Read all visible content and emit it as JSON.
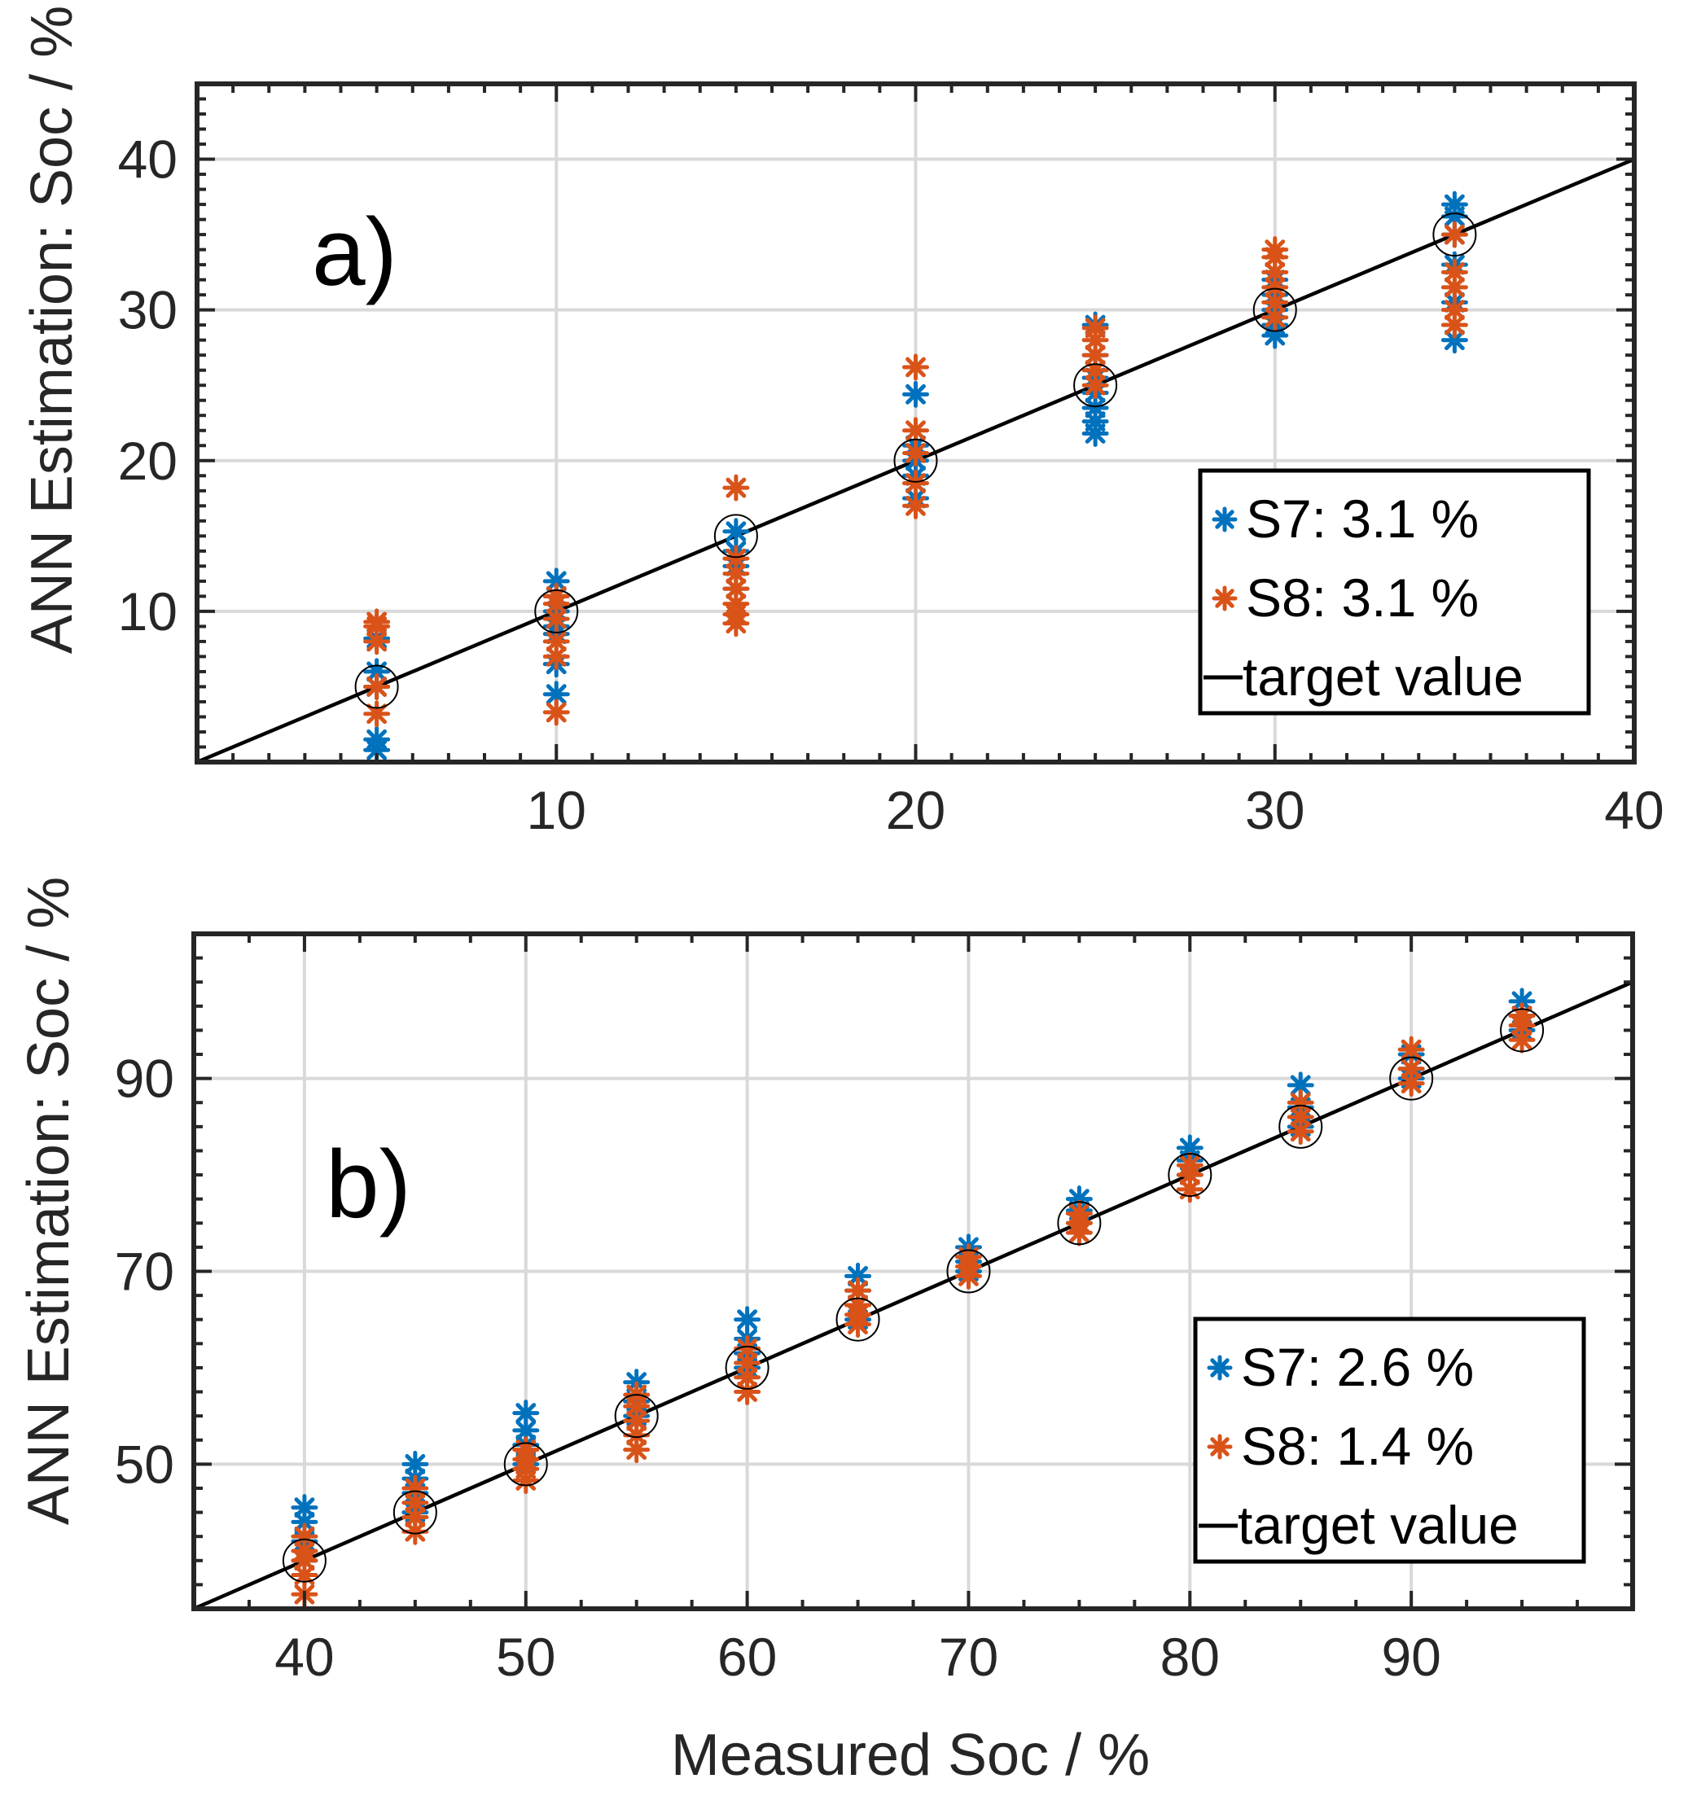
{
  "colors": {
    "s7": "#0072BD",
    "s8": "#D95319",
    "target": "#000000",
    "grid": "#d9d9d9",
    "axes": "#262626"
  },
  "chart_data": [
    {
      "type": "scatter",
      "panel_label": "a)",
      "ylabel": "ANN Estimation: Soc / %",
      "xlabel": "",
      "xlim": [
        0,
        40
      ],
      "ylim": [
        0,
        45
      ],
      "xticks": [
        10,
        20,
        30,
        40
      ],
      "yticks": [
        10,
        20,
        30,
        40
      ],
      "grid": true,
      "legend_position": "bottom-right",
      "series": [
        {
          "name": "S7",
          "legend": "S7: 3.1 %",
          "marker": "asterisk",
          "points": [
            [
              5,
              0.8
            ],
            [
              5,
              1.5
            ],
            [
              5,
              5
            ],
            [
              5,
              6
            ],
            [
              5,
              8.2
            ],
            [
              10,
              4.5
            ],
            [
              10,
              6.5
            ],
            [
              10,
              8.5
            ],
            [
              10,
              9
            ],
            [
              10,
              10
            ],
            [
              10,
              11
            ],
            [
              10,
              12
            ],
            [
              15,
              11.5
            ],
            [
              15,
              13
            ],
            [
              15,
              14
            ],
            [
              15,
              15.3
            ],
            [
              20,
              17.5
            ],
            [
              20,
              19
            ],
            [
              20,
              20
            ],
            [
              20,
              21
            ],
            [
              20,
              24.4
            ],
            [
              25,
              21.8
            ],
            [
              25,
              22.6
            ],
            [
              25,
              23.5
            ],
            [
              25,
              24.5
            ],
            [
              25,
              25.5
            ],
            [
              25,
              27
            ],
            [
              25,
              29
            ],
            [
              30,
              28.3
            ],
            [
              30,
              29
            ],
            [
              30,
              30
            ],
            [
              30,
              31
            ],
            [
              30,
              32
            ],
            [
              35,
              28
            ],
            [
              35,
              30.5
            ],
            [
              35,
              33
            ],
            [
              35,
              35
            ],
            [
              35,
              36.2
            ],
            [
              35,
              37
            ]
          ]
        },
        {
          "name": "S8",
          "legend": "S8: 3.1 %",
          "marker": "asterisk",
          "points": [
            [
              5,
              3.2
            ],
            [
              5,
              5
            ],
            [
              5,
              8
            ],
            [
              5,
              9
            ],
            [
              5,
              9.3
            ],
            [
              10,
              3.3
            ],
            [
              10,
              7
            ],
            [
              10,
              8
            ],
            [
              10,
              9.5
            ],
            [
              10,
              10.5
            ],
            [
              10,
              11
            ],
            [
              15,
              9.2
            ],
            [
              15,
              9.8
            ],
            [
              15,
              10.5
            ],
            [
              15,
              11.5
            ],
            [
              15,
              12.5
            ],
            [
              15,
              13.5
            ],
            [
              15,
              18.2
            ],
            [
              20,
              17
            ],
            [
              20,
              18.5
            ],
            [
              20,
              20.5
            ],
            [
              20,
              22
            ],
            [
              20,
              26.2
            ],
            [
              25,
              25
            ],
            [
              25,
              26
            ],
            [
              25,
              27
            ],
            [
              25,
              28
            ],
            [
              25,
              28.8
            ],
            [
              30,
              29.5
            ],
            [
              30,
              30.5
            ],
            [
              30,
              31.5
            ],
            [
              30,
              32.5
            ],
            [
              30,
              33.5
            ],
            [
              30,
              34
            ],
            [
              35,
              29
            ],
            [
              35,
              30
            ],
            [
              35,
              31.5
            ],
            [
              35,
              32.5
            ],
            [
              35,
              35
            ]
          ]
        },
        {
          "name": "target",
          "legend": "target value",
          "marker": "line",
          "points": [
            [
              0,
              0
            ],
            [
              40,
              40
            ]
          ]
        }
      ],
      "target_circles": [
        [
          5,
          5
        ],
        [
          10,
          10
        ],
        [
          15,
          15
        ],
        [
          20,
          20
        ],
        [
          25,
          25
        ],
        [
          30,
          30
        ],
        [
          35,
          35
        ]
      ]
    },
    {
      "type": "scatter",
      "panel_label": "b)",
      "ylabel": "ANN Estimation: Soc / %",
      "xlabel": "Measured Soc / %",
      "xlim": [
        35,
        100
      ],
      "ylim": [
        35,
        105
      ],
      "xticks": [
        40,
        50,
        60,
        70,
        80,
        90
      ],
      "yticks": [
        50,
        70,
        90
      ],
      "grid": true,
      "legend_position": "bottom-right",
      "series": [
        {
          "name": "S7",
          "legend": "S7: 2.6 %",
          "marker": "asterisk",
          "points": [
            [
              40,
              40
            ],
            [
              40,
              42
            ],
            [
              40,
              44
            ],
            [
              40,
              45.5
            ],
            [
              45,
              45
            ],
            [
              45,
              47
            ],
            [
              45,
              48.5
            ],
            [
              45,
              50
            ],
            [
              50,
              50
            ],
            [
              50,
              52
            ],
            [
              50,
              53.5
            ],
            [
              50,
              55.3
            ],
            [
              55,
              55
            ],
            [
              55,
              56.5
            ],
            [
              55,
              58.5
            ],
            [
              60,
              60
            ],
            [
              60,
              61.5
            ],
            [
              60,
              63
            ],
            [
              60,
              65
            ],
            [
              65,
              65
            ],
            [
              65,
              66.5
            ],
            [
              65,
              68
            ],
            [
              65,
              69.5
            ],
            [
              70,
              70
            ],
            [
              70,
              71
            ],
            [
              70,
              72.5
            ],
            [
              75,
              75
            ],
            [
              75,
              76.3
            ],
            [
              75,
              77.5
            ],
            [
              80,
              80
            ],
            [
              80,
              81.5
            ],
            [
              80,
              82.8
            ],
            [
              85,
              85
            ],
            [
              85,
              87
            ],
            [
              85,
              89.3
            ],
            [
              90,
              90
            ],
            [
              90,
              91
            ],
            [
              90,
              92.5
            ],
            [
              95,
              95
            ],
            [
              95,
              96.5
            ],
            [
              95,
              98
            ]
          ]
        },
        {
          "name": "S8",
          "legend": "S8: 1.4 %",
          "marker": "asterisk",
          "points": [
            [
              40,
              36.5
            ],
            [
              40,
              38.5
            ],
            [
              40,
              40
            ],
            [
              40,
              41
            ],
            [
              40,
              42.5
            ],
            [
              45,
              43
            ],
            [
              45,
              44.5
            ],
            [
              45,
              46
            ],
            [
              45,
              47.5
            ],
            [
              50,
              48.3
            ],
            [
              50,
              49.5
            ],
            [
              50,
              50.5
            ],
            [
              50,
              51.5
            ],
            [
              55,
              51.5
            ],
            [
              55,
              53
            ],
            [
              55,
              54.5
            ],
            [
              55,
              56
            ],
            [
              55,
              57.2
            ],
            [
              60,
              57.5
            ],
            [
              60,
              59
            ],
            [
              60,
              60.5
            ],
            [
              60,
              62
            ],
            [
              65,
              64.5
            ],
            [
              65,
              65.5
            ],
            [
              65,
              66.5
            ],
            [
              65,
              68
            ],
            [
              70,
              69.5
            ],
            [
              70,
              70.5
            ],
            [
              70,
              71.5
            ],
            [
              75,
              74
            ],
            [
              75,
              75
            ],
            [
              75,
              76
            ],
            [
              80,
              78.5
            ],
            [
              80,
              80
            ],
            [
              80,
              81
            ],
            [
              85,
              84.5
            ],
            [
              85,
              86
            ],
            [
              85,
              87.5
            ],
            [
              90,
              89.5
            ],
            [
              90,
              91
            ],
            [
              90,
              93
            ],
            [
              95,
              94
            ],
            [
              95,
              95.5
            ],
            [
              95,
              96.5
            ]
          ]
        },
        {
          "name": "target",
          "legend": "target value",
          "marker": "line",
          "points": [
            [
              35,
              35
            ],
            [
              100,
              100
            ]
          ]
        }
      ],
      "target_circles": [
        [
          40,
          40
        ],
        [
          45,
          45
        ],
        [
          50,
          50
        ],
        [
          55,
          55
        ],
        [
          60,
          60
        ],
        [
          65,
          65
        ],
        [
          70,
          70
        ],
        [
          75,
          75
        ],
        [
          80,
          80
        ],
        [
          85,
          85
        ],
        [
          90,
          90
        ],
        [
          95,
          95
        ]
      ]
    }
  ]
}
